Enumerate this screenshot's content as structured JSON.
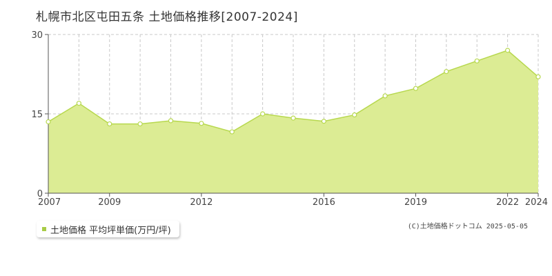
{
  "title": "札幌市北区屯田五条 土地価格推移[2007-2024]",
  "legend": {
    "label": "土地価格 平均坪単価(万円/坪)"
  },
  "copyright": "(C)土地価格ドットコム 2025-05-05",
  "colors": {
    "fill": "#dcec94",
    "line": "#b7d84e",
    "grid": "#c8c8c8",
    "point": "#ffffff",
    "legend": "#a8cc46"
  },
  "chart_data": {
    "type": "area",
    "x": [
      2007,
      2008,
      2009,
      2010,
      2011,
      2012,
      2013,
      2014,
      2015,
      2016,
      2017,
      2018,
      2019,
      2020,
      2021,
      2022,
      2023,
      2024
    ],
    "series": [
      {
        "name": "土地価格 平均坪単価(万円/坪)",
        "values": [
          13.5,
          17.0,
          13.1,
          13.1,
          13.7,
          13.2,
          11.6,
          15.0,
          14.2,
          13.6,
          14.8,
          18.4,
          19.8,
          23.0,
          25.0,
          27.0,
          22.0,
          22.0
        ]
      }
    ],
    "xticks": [
      2007,
      2009,
      2012,
      2016,
      2019,
      2022,
      2024
    ],
    "yticks": [
      0,
      15,
      30
    ],
    "ylim": [
      0,
      30
    ],
    "xlim": [
      2007,
      2023
    ],
    "grid": true
  }
}
